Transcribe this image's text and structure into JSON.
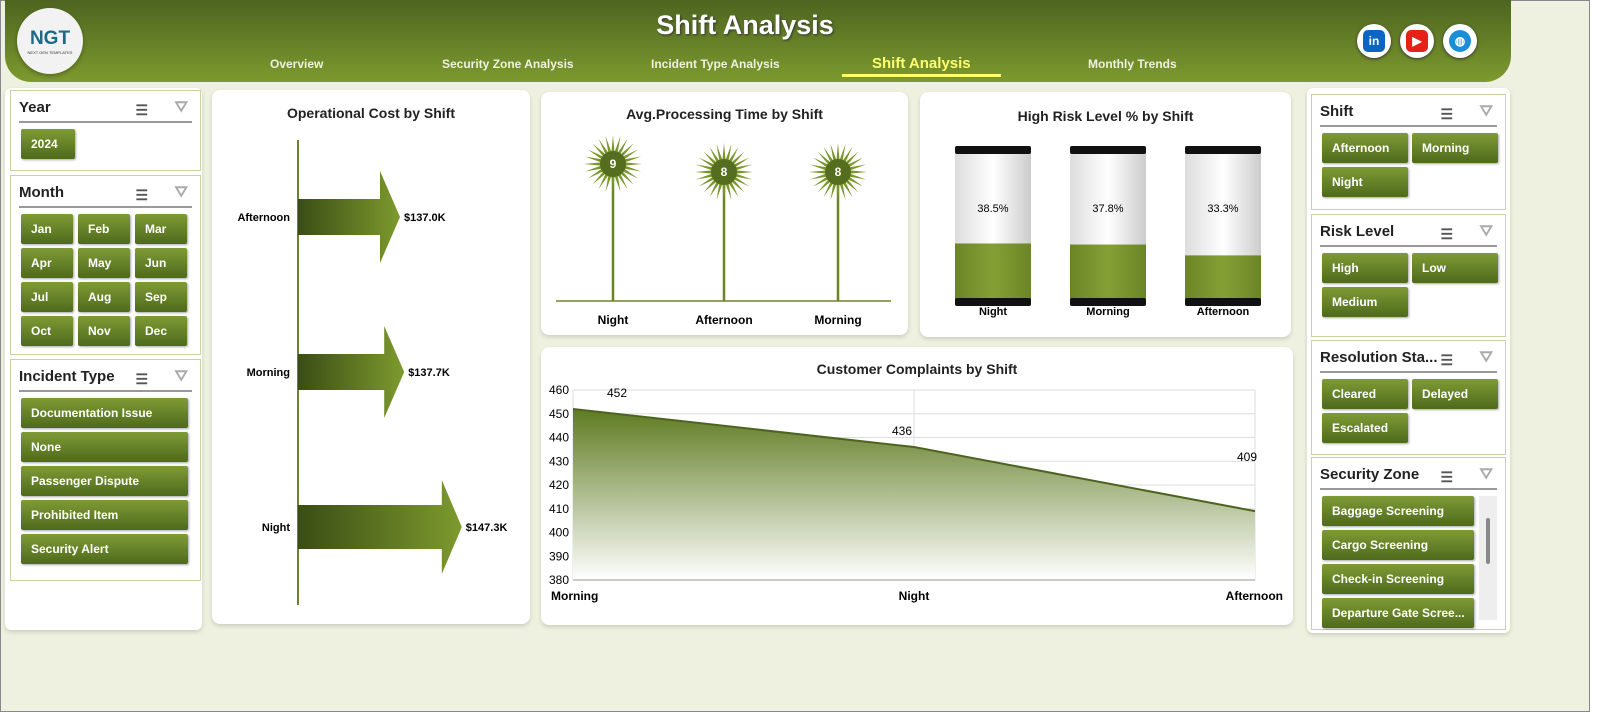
{
  "header": {
    "title": "Shift Analysis",
    "logo_text": "NGT",
    "logo_sub": "NEXT GEN TEMPLATES",
    "tabs": [
      {
        "label": "Overview"
      },
      {
        "label": "Security Zone Analysis"
      },
      {
        "label": "Incident Type Analysis"
      },
      {
        "label": "Shift Analysis",
        "active": true
      },
      {
        "label": "Monthly Trends"
      }
    ],
    "social": [
      {
        "icon": "linkedin-icon",
        "glyph": "in",
        "color": "#0a66c2"
      },
      {
        "icon": "youtube-icon",
        "glyph": "▶",
        "color": "#e62117"
      },
      {
        "icon": "globe-icon",
        "glyph": "◍",
        "color": "#1a8fd8"
      }
    ]
  },
  "colors": {
    "accent": "#6b8526",
    "header_dark": "#4d6420",
    "background": "#eef1df"
  },
  "slicers": {
    "year": {
      "title": "Year",
      "items": [
        "2024"
      ]
    },
    "month": {
      "title": "Month",
      "items": [
        "Jan",
        "Feb",
        "Mar",
        "Apr",
        "May",
        "Jun",
        "Jul",
        "Aug",
        "Sep",
        "Oct",
        "Nov",
        "Dec"
      ]
    },
    "incident": {
      "title": "Incident Type",
      "items": [
        "Documentation Issue",
        "None",
        "Passenger Dispute",
        "Prohibited Item",
        "Security Alert"
      ]
    },
    "shift": {
      "title": "Shift",
      "items": [
        "Afternoon",
        "Morning",
        "Night"
      ]
    },
    "risk": {
      "title": "Risk Level",
      "items": [
        "High",
        "Low",
        "Medium"
      ]
    },
    "resolution": {
      "title": "Resolution Sta...",
      "items": [
        "Cleared",
        "Delayed",
        "Escalated"
      ]
    },
    "zone": {
      "title": "Security Zone",
      "items": [
        "Baggage Screening",
        "Cargo Screening",
        "Check-in Screening",
        "Departure Gate Scree..."
      ]
    }
  },
  "chart_data": [
    {
      "type": "bar",
      "title": "Operational Cost by Shift",
      "categories": [
        "Afternoon",
        "Morning",
        "Night"
      ],
      "values": [
        137.0,
        137.7,
        147.3
      ],
      "labels": [
        "$137.0K",
        "$137.7K",
        "$147.3K"
      ],
      "unit": "$K"
    },
    {
      "type": "lollipop",
      "title": "Avg.Processing Time by Shift",
      "categories": [
        "Night",
        "Afternoon",
        "Morning"
      ],
      "values": [
        9,
        8,
        8
      ]
    },
    {
      "type": "bar",
      "title": "High Risk Level % by Shift",
      "categories": [
        "Night",
        "Morning",
        "Afternoon"
      ],
      "values": [
        38.5,
        37.8,
        33.3
      ],
      "labels": [
        "38.5%",
        "37.8%",
        "33.3%"
      ]
    },
    {
      "type": "area",
      "title": "Customer Complaints by Shift",
      "categories": [
        "Morning",
        "Night",
        "Afternoon"
      ],
      "values": [
        452,
        436,
        409
      ],
      "ylim": [
        380,
        460
      ],
      "yticks": [
        "380",
        "390",
        "400",
        "410",
        "420",
        "430",
        "440",
        "450",
        "460"
      ],
      "grid": true
    }
  ]
}
